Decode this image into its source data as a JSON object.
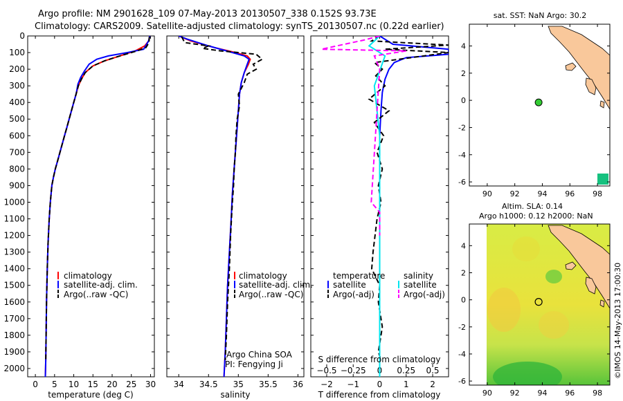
{
  "header": {
    "line1": "Argo profile: NM 2901628_109 07-May-2013 20130507_338 0.152S 93.73E",
    "line2": "Climatology: CARS2009. Satellite-adjusted climatology: synTS_20130507.nc (0.22d earlier)"
  },
  "colors": {
    "climatology": "#ff0000",
    "satellite": "#0000ff",
    "argo": "#000000",
    "salinity_sat": "#00e5ee",
    "salinity_argo": "#ff00ff",
    "land": "#f9c89b",
    "map_dot": "#33cc33",
    "sst_square": "#16c17f"
  },
  "chart_data": [
    {
      "type": "line",
      "id": "temperature",
      "xlabel": "temperature (deg C)",
      "ylabel": "",
      "xlim": [
        -2,
        31
      ],
      "ylim": [
        2050,
        0
      ],
      "xticks": [
        0,
        5,
        10,
        15,
        20,
        25,
        30
      ],
      "yticks": [
        0,
        100,
        200,
        300,
        400,
        500,
        600,
        700,
        800,
        900,
        1000,
        1100,
        1200,
        1300,
        1400,
        1500,
        1600,
        1700,
        1800,
        1900,
        2000
      ],
      "legend": {
        "placement": "lower-right",
        "entries": [
          "climatology",
          "satellite-adj. clim.",
          "Argo(..raw -QC)"
        ]
      },
      "series": [
        {
          "name": "climatology",
          "style": "solid",
          "color": "#ff0000",
          "x": [
            29.8,
            29.5,
            28.5,
            26,
            22,
            18,
            15,
            13,
            12,
            11.2,
            10.6,
            10,
            9.4,
            8.8,
            8.2,
            7.6,
            7,
            6.4,
            5.8,
            5.2,
            4.7,
            4.3,
            3.9,
            3.6,
            3.3,
            3.1,
            2.9,
            2.8,
            2.7,
            2.6
          ],
          "y": [
            0,
            30,
            60,
            90,
            120,
            150,
            180,
            220,
            260,
            300,
            350,
            400,
            450,
            500,
            550,
            600,
            650,
            700,
            750,
            800,
            850,
            900,
            1000,
            1100,
            1250,
            1400,
            1600,
            1800,
            1950,
            2050
          ]
        },
        {
          "name": "satellite-adj. clim.",
          "style": "solid",
          "color": "#0000ff",
          "x": [
            29.8,
            29.5,
            28.2,
            24,
            19,
            16,
            14,
            12.8,
            11.8,
            11.1,
            10.6,
            10,
            9.4,
            8.8,
            8.2,
            7.6,
            7,
            6.4,
            5.8,
            5.2,
            4.7,
            4.3,
            3.9,
            3.6,
            3.3,
            3.1,
            2.9,
            2.8,
            2.7,
            2.6
          ],
          "y": [
            0,
            30,
            80,
            100,
            120,
            140,
            170,
            210,
            250,
            290,
            350,
            400,
            450,
            500,
            550,
            600,
            650,
            700,
            750,
            800,
            850,
            900,
            1000,
            1100,
            1250,
            1400,
            1600,
            1800,
            1950,
            2050
          ]
        },
        {
          "name": "Argo(..raw -QC)",
          "style": "dashed",
          "color": "#000000",
          "x": [
            29.7,
            29.6,
            28.8,
            26.5,
            22,
            18,
            15,
            13,
            12,
            11.2,
            10.6,
            10,
            9.4,
            8.8,
            8.2,
            7.6,
            7,
            6.4,
            5.8,
            5.2,
            4.7,
            4.3,
            3.9,
            3.6,
            3.3,
            3.1,
            2.9,
            2.8,
            2.7
          ],
          "y": [
            5,
            40,
            70,
            90,
            120,
            150,
            180,
            220,
            260,
            300,
            350,
            400,
            450,
            500,
            550,
            600,
            650,
            700,
            750,
            800,
            850,
            900,
            1000,
            1100,
            1250,
            1400,
            1600,
            1800,
            1950
          ]
        }
      ]
    },
    {
      "type": "line",
      "id": "salinity",
      "xlabel": "salinity",
      "ylabel": "",
      "xlim": [
        33.8,
        36.1
      ],
      "ylim": [
        2050,
        0
      ],
      "xticks": [
        34,
        34.5,
        35,
        35.5,
        36
      ],
      "xticklabels": [
        "34",
        "34.5",
        "35",
        "35.5",
        "36"
      ],
      "legend": {
        "placement": "lower-right",
        "entries": [
          "climatology",
          "satellite-adj. clim.",
          "Argo(..raw -QC)"
        ]
      },
      "annotation": [
        "Argo China SOA",
        "PI: Fengying Ji"
      ],
      "series": [
        {
          "name": "climatology",
          "style": "solid",
          "color": "#ff0000",
          "x": [
            34.0,
            34.2,
            34.6,
            34.95,
            35.15,
            35.2,
            35.17,
            35.1,
            35.05,
            35.02,
            35.0,
            34.98,
            34.96,
            34.94,
            34.92,
            34.9,
            34.88,
            34.85,
            34.82,
            34.8,
            34.78,
            34.76
          ],
          "y": [
            0,
            30,
            70,
            100,
            120,
            140,
            170,
            220,
            280,
            350,
            450,
            550,
            650,
            750,
            850,
            950,
            1100,
            1300,
            1500,
            1700,
            1900,
            2050
          ]
        },
        {
          "name": "satellite-adj. clim.",
          "style": "solid",
          "color": "#0000ff",
          "x": [
            34.0,
            34.15,
            34.5,
            34.9,
            35.1,
            35.18,
            35.15,
            35.1,
            35.05,
            35.02,
            35.0,
            34.98,
            34.96,
            34.94,
            34.92,
            34.9,
            34.88,
            34.85,
            34.82,
            34.8,
            34.78,
            34.76
          ],
          "y": [
            0,
            20,
            60,
            100,
            120,
            140,
            170,
            220,
            280,
            350,
            450,
            550,
            650,
            750,
            850,
            950,
            1100,
            1300,
            1500,
            1700,
            1900,
            2050
          ]
        },
        {
          "name": "Argo(..raw -QC)",
          "style": "dashed",
          "color": "#000000",
          "x": [
            34.05,
            34.1,
            34.5,
            34.4,
            34.7,
            35.0,
            35.3,
            35.4,
            35.25,
            35.3,
            35.15,
            35.1,
            35.0,
            35.02,
            34.98,
            34.96,
            34.95,
            34.93,
            34.92,
            34.9,
            34.87,
            34.85,
            34.82,
            34.8,
            34.78
          ],
          "y": [
            5,
            40,
            60,
            75,
            90,
            100,
            110,
            140,
            170,
            200,
            230,
            280,
            350,
            420,
            500,
            600,
            700,
            800,
            900,
            1000,
            1200,
            1400,
            1600,
            1800,
            1950
          ]
        }
      ]
    },
    {
      "type": "line",
      "id": "difference",
      "xlabel": "T difference from climatology",
      "xlabel_top": "S difference from climatology",
      "ylabel": "",
      "xlim": [
        -2.6,
        2.6
      ],
      "ylim": [
        2050,
        0
      ],
      "xticks": [
        -2,
        -1,
        0,
        1,
        2
      ],
      "xticklabels": [
        "−2",
        "−1",
        "0",
        "1",
        "2"
      ],
      "s_xlim": [
        -0.65,
        0.65
      ],
      "s_xticks": [
        -0.5,
        -0.25,
        0,
        0.25,
        0.5
      ],
      "s_xticklabels": [
        "−0.5",
        "−0.25",
        "0",
        "0.25",
        "0.5"
      ],
      "legend": {
        "placement": "lower",
        "temperature_title": "temperature",
        "salinity_title": "salinity",
        "temperature_entries": [
          "satellite",
          "Argo(-adj)"
        ],
        "salinity_entries": [
          "satellite",
          "Argo(-adj)"
        ]
      },
      "series": [
        {
          "name": "satellite",
          "group": "temperature",
          "style": "solid",
          "color": "#0000ff",
          "x": [
            0,
            0.5,
            2.6,
            2.6,
            1.0,
            0.55,
            0.35,
            0.2,
            0.1,
            0.05,
            0,
            0,
            0,
            0
          ],
          "y": [
            0,
            50,
            80,
            110,
            130,
            160,
            200,
            260,
            340,
            450,
            600,
            900,
            1400,
            2050
          ]
        },
        {
          "name": "Argo(-adj)",
          "group": "temperature",
          "style": "dashed",
          "color": "#000000",
          "x": [
            0,
            -0.3,
            2.6,
            0.2,
            2.6,
            1.2,
            -0.2,
            0.1,
            -0.15,
            0.2,
            -0.4,
            0.35,
            -0.2,
            0.15,
            -0.1,
            0.1,
            -0.05,
            0.05,
            -0.1,
            -0.25,
            -0.3,
            0,
            -0.05,
            0.1,
            -0.05,
            0.05
          ],
          "y": [
            0,
            30,
            55,
            80,
            100,
            130,
            160,
            200,
            240,
            300,
            380,
            450,
            520,
            600,
            700,
            800,
            900,
            1000,
            1100,
            1300,
            1400,
            1500,
            1600,
            1750,
            1900,
            1950
          ]
        },
        {
          "name": "satellite",
          "group": "salinity",
          "style": "solid",
          "color": "#00e5ee",
          "x": [
            0,
            -0.1,
            0.05,
            -0.05,
            0,
            0,
            0,
            0
          ],
          "y": [
            0,
            60,
            120,
            300,
            600,
            1000,
            1500,
            2050
          ]
        },
        {
          "name": "Argo(-adj)",
          "group": "salinity",
          "style": "dashed",
          "color": "#ff00ff",
          "x": [
            0,
            -0.15,
            -0.55,
            0.25,
            -0.05,
            0,
            -0.08,
            0,
            0
          ],
          "y": [
            0,
            25,
            80,
            90,
            120,
            200,
            1000,
            1060,
            1200
          ]
        }
      ]
    },
    {
      "type": "map",
      "id": "sst-map",
      "title": "sat. SST: NaN Argo: 30.2",
      "xlim": [
        88.7,
        98.9
      ],
      "ylim": [
        -6.3,
        5.6
      ],
      "xticks": [
        90,
        92,
        94,
        96,
        98
      ],
      "yticks": [
        -6,
        -4,
        -2,
        0,
        2,
        4
      ],
      "marker": {
        "lon": 93.73,
        "lat": -0.152
      }
    },
    {
      "type": "heatmap",
      "id": "sla-map",
      "title_line1": "Altim. SLA: 0.14",
      "title_line2": "Argo h1000: 0.12 h2000: NaN",
      "xlim": [
        88.7,
        98.9
      ],
      "ylim": [
        -6.3,
        5.6
      ],
      "xticks": [
        90,
        92,
        94,
        96,
        98
      ],
      "yticks": [
        -6,
        -4,
        -2,
        0,
        2,
        4
      ],
      "marker": {
        "lon": 93.73,
        "lat": -0.152
      }
    }
  ],
  "footer": {
    "timestamp": "©IMOS 14-May-2013 17:00:30"
  }
}
